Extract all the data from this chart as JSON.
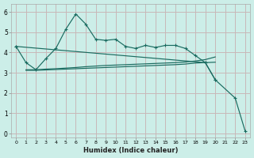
{
  "xlabel": "Humidex (Indice chaleur)",
  "bg_color": "#cceee8",
  "grid_color": "#c8b8b8",
  "line_color": "#1a6b60",
  "xlim": [
    -0.5,
    23.5
  ],
  "ylim": [
    -0.2,
    6.4
  ],
  "xticks": [
    0,
    1,
    2,
    3,
    4,
    5,
    6,
    7,
    8,
    9,
    10,
    11,
    12,
    13,
    14,
    15,
    16,
    17,
    18,
    19,
    20,
    21,
    22,
    23
  ],
  "yticks": [
    0,
    1,
    2,
    3,
    4,
    5,
    6
  ],
  "line_peak_x": [
    0,
    1,
    2,
    3,
    4,
    5,
    6,
    7,
    8,
    9,
    10,
    11,
    12,
    13,
    14,
    15,
    16,
    17,
    18,
    19,
    20
  ],
  "line_peak_y": [
    4.3,
    3.5,
    3.15,
    3.7,
    4.2,
    5.15,
    5.9,
    5.4,
    4.65,
    4.6,
    4.65,
    4.3,
    4.2,
    4.35,
    4.25,
    4.35,
    4.35,
    4.2,
    3.85,
    3.5,
    2.65
  ],
  "line_decline_x": [
    0,
    19,
    20,
    22,
    23
  ],
  "line_decline_y": [
    4.3,
    3.5,
    2.65,
    1.75,
    0.12
  ],
  "line_flat1_x": [
    1,
    2,
    3,
    4,
    5,
    6,
    7,
    8,
    9,
    10,
    11,
    12,
    13,
    14,
    15,
    16,
    17,
    18,
    19,
    20
  ],
  "line_flat1_y": [
    3.15,
    3.15,
    3.18,
    3.2,
    3.23,
    3.26,
    3.3,
    3.33,
    3.36,
    3.38,
    3.4,
    3.42,
    3.44,
    3.46,
    3.48,
    3.5,
    3.53,
    3.58,
    3.65,
    3.78
  ],
  "line_flat2_x": [
    1,
    2,
    3,
    4,
    5,
    6,
    7,
    8,
    9,
    10,
    11,
    12,
    13,
    14,
    15,
    16,
    17,
    18,
    19,
    20
  ],
  "line_flat2_y": [
    3.12,
    3.12,
    3.14,
    3.16,
    3.18,
    3.2,
    3.22,
    3.24,
    3.26,
    3.28,
    3.3,
    3.32,
    3.34,
    3.36,
    3.38,
    3.4,
    3.43,
    3.48,
    3.5,
    3.52
  ]
}
